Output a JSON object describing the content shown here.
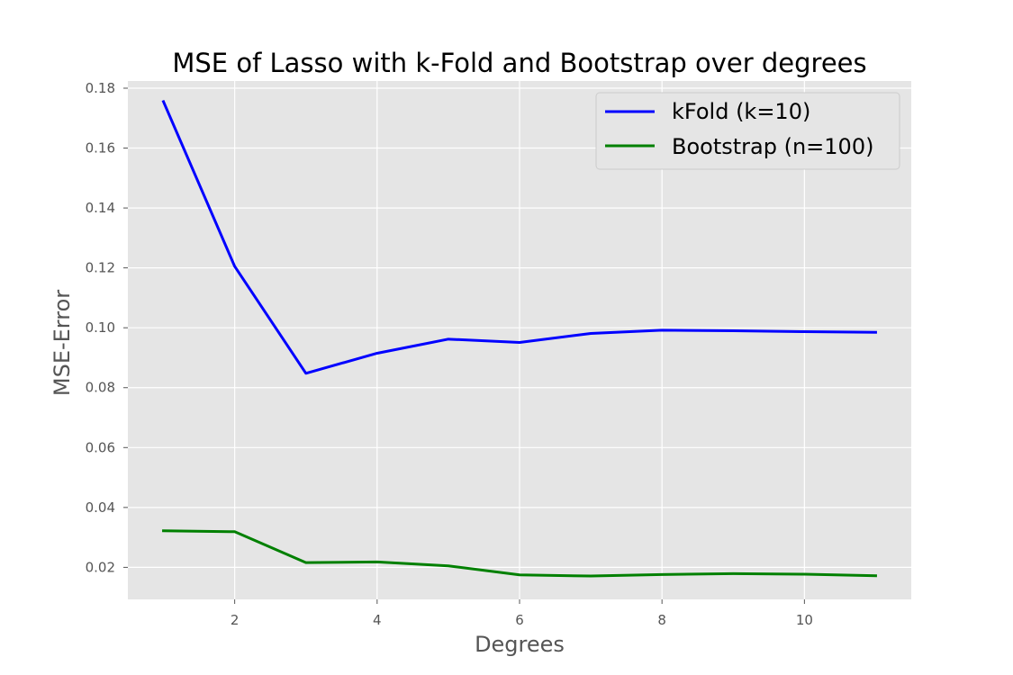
{
  "chart_data": {
    "type": "line",
    "title": "MSE of Lasso with k-Fold and Bootstrap over degrees",
    "xlabel": "Degrees",
    "ylabel": "MSE-Error",
    "xlim": [
      0.5,
      11.5
    ],
    "ylim": [
      0.0093,
      0.1824
    ],
    "xticks": [
      2,
      4,
      6,
      8,
      10
    ],
    "xtick_labels": [
      "2",
      "4",
      "6",
      "8",
      "10"
    ],
    "yticks": [
      0.02,
      0.04,
      0.06,
      0.08,
      0.1,
      0.12,
      0.14,
      0.16,
      0.18
    ],
    "ytick_labels": [
      "0.02",
      "0.04",
      "0.06",
      "0.08",
      "0.10",
      "0.12",
      "0.14",
      "0.16",
      "0.18"
    ],
    "grid": true,
    "legend_position": "top-right",
    "x": [
      1,
      2,
      3,
      4,
      5,
      6,
      7,
      8,
      9,
      10,
      11
    ],
    "series": [
      {
        "name": "kFold (k=10)",
        "color": "#0000ff",
        "values": [
          0.1755,
          0.1205,
          0.0848,
          0.0915,
          0.0962,
          0.0951,
          0.0981,
          0.0992,
          0.099,
          0.0987,
          0.0985
        ]
      },
      {
        "name": "Bootstrap (n=100)",
        "color": "#008000",
        "values": [
          0.0322,
          0.0319,
          0.0216,
          0.0218,
          0.0205,
          0.0175,
          0.0171,
          0.0176,
          0.0179,
          0.0177,
          0.0172
        ]
      }
    ]
  }
}
